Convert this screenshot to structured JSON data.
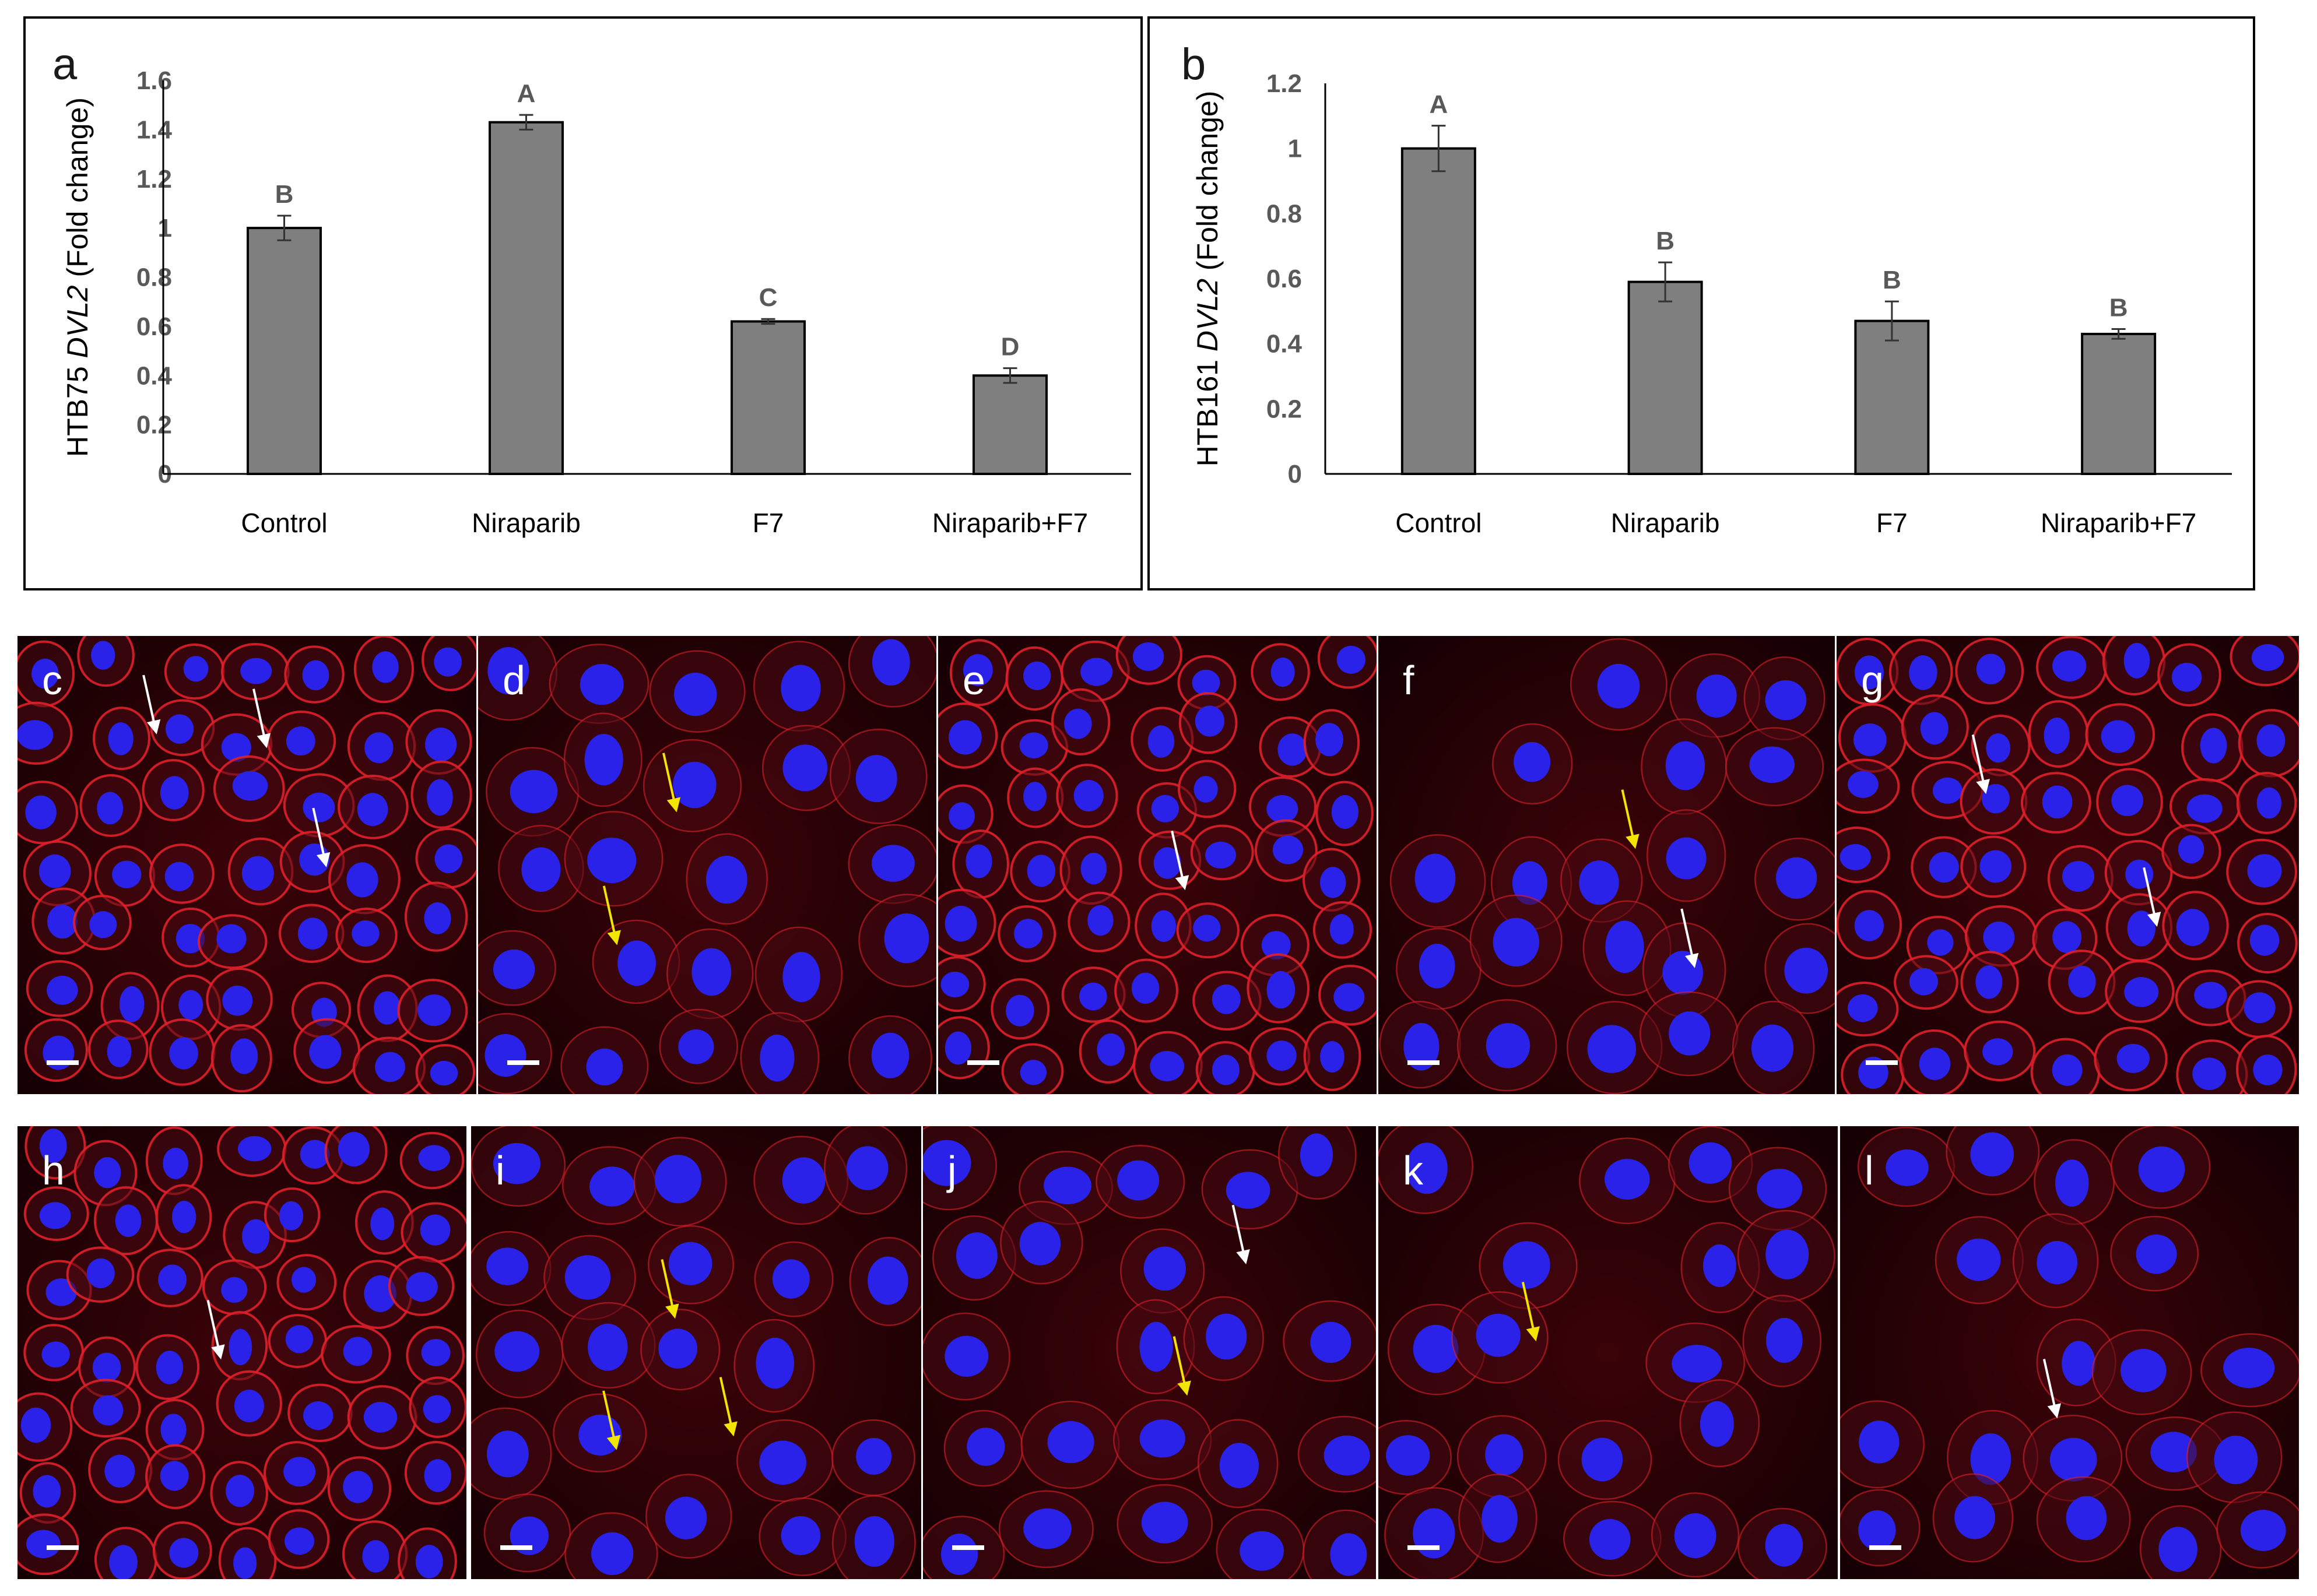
{
  "chart_data": [
    {
      "panel_label": "a",
      "type": "bar",
      "categories": [
        "Control",
        "Niraparib",
        "F7",
        "Niraparib+F7"
      ],
      "values": [
        1.0,
        1.43,
        0.62,
        0.4
      ],
      "errors": [
        0.05,
        0.03,
        0.01,
        0.03
      ],
      "significance_letters": [
        "B",
        "A",
        "C",
        "D"
      ],
      "ylabel_prefix": "HTB75 ",
      "ylabel_gene": "DVL2",
      "ylabel_suffix": " (Fold change)",
      "ylim": [
        0,
        1.6
      ],
      "yticks": [
        0,
        0.2,
        0.4,
        0.6,
        0.8,
        1,
        1.2,
        1.4,
        1.6
      ],
      "ytick_labels": [
        "0",
        "0.2",
        "0.4",
        "0.6",
        "0.8",
        "1",
        "1.2",
        "1.4",
        "1.6"
      ],
      "bar_color": "#7f7f7f",
      "grid": false
    },
    {
      "panel_label": "b",
      "type": "bar",
      "categories": [
        "Control",
        "Niraparib",
        "F7",
        "Niraparib+F7"
      ],
      "values": [
        1.0,
        0.59,
        0.47,
        0.43
      ],
      "errors": [
        0.07,
        0.06,
        0.06,
        0.015
      ],
      "significance_letters": [
        "A",
        "B",
        "B",
        "B"
      ],
      "ylabel_prefix": "HTB161 ",
      "ylabel_gene": "DVL2",
      "ylabel_suffix": " (Fold change)",
      "ylim": [
        0,
        1.2
      ],
      "yticks": [
        0,
        0.2,
        0.4,
        0.6,
        0.8,
        1,
        1.2
      ],
      "ytick_labels": [
        "0",
        "0.2",
        "0.4",
        "0.6",
        "0.8",
        "1",
        "1.2"
      ],
      "bar_color": "#7f7f7f",
      "grid": false
    }
  ],
  "micrographs": [
    {
      "label": "c",
      "white_arrows": 3,
      "yellow_arrows": 0
    },
    {
      "label": "d",
      "white_arrows": 0,
      "yellow_arrows": 2
    },
    {
      "label": "e",
      "white_arrows": 1,
      "yellow_arrows": 0
    },
    {
      "label": "f",
      "white_arrows": 1,
      "yellow_arrows": 1
    },
    {
      "label": "g",
      "white_arrows": 2,
      "yellow_arrows": 0
    },
    {
      "label": "h",
      "white_arrows": 1,
      "yellow_arrows": 0
    },
    {
      "label": "i",
      "white_arrows": 0,
      "yellow_arrows": 3
    },
    {
      "label": "j",
      "white_arrows": 1,
      "yellow_arrows": 1
    },
    {
      "label": "k",
      "white_arrows": 0,
      "yellow_arrows": 1
    },
    {
      "label": "l",
      "white_arrows": 1,
      "yellow_arrows": 0
    }
  ],
  "colors": {
    "membrane_red": "#e0202a",
    "nucleus_blue": "#2a22e8",
    "background": "#000000",
    "arrow_white": "#ffffff",
    "arrow_yellow": "#f2e600",
    "scale_bar": "#ffffff"
  }
}
